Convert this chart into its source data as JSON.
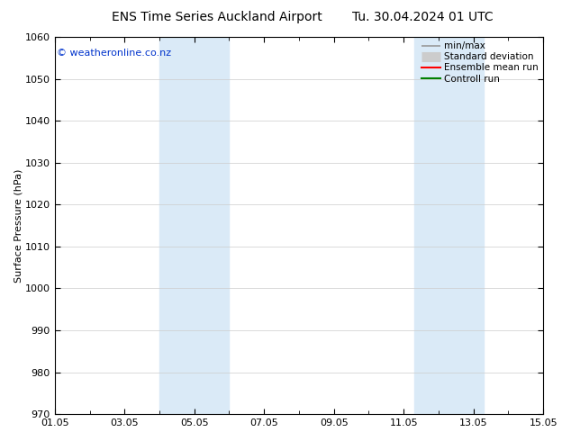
{
  "title_left": "ENS Time Series Auckland Airport",
  "title_right": "Tu. 30.04.2024 01 UTC",
  "ylabel": "Surface Pressure (hPa)",
  "ylim": [
    970,
    1060
  ],
  "yticks": [
    970,
    980,
    990,
    1000,
    1010,
    1020,
    1030,
    1040,
    1050,
    1060
  ],
  "xlim_start": 0,
  "xlim_end": 14,
  "xtick_positions": [
    0,
    2,
    4,
    6,
    8,
    10,
    12,
    14
  ],
  "xtick_labels": [
    "01.05",
    "03.05",
    "05.05",
    "07.05",
    "09.05",
    "11.05",
    "13.05",
    "15.05"
  ],
  "shaded_bands": [
    {
      "xmin": 3.0,
      "xmax": 5.0
    },
    {
      "xmin": 10.3,
      "xmax": 12.3
    }
  ],
  "band_color": "#daeaf7",
  "band_alpha": 1.0,
  "watermark": "© weatheronline.co.nz",
  "watermark_color": "#0033cc",
  "legend_entries": [
    {
      "label": "min/max",
      "color": "#999999",
      "lw": 1.2,
      "style": "-"
    },
    {
      "label": "Standard deviation",
      "color": "#cccccc",
      "lw": 8,
      "style": "-"
    },
    {
      "label": "Ensemble mean run",
      "color": "red",
      "lw": 1.5,
      "style": "-"
    },
    {
      "label": "Controll run",
      "color": "green",
      "lw": 1.5,
      "style": "-"
    }
  ],
  "background_color": "#ffffff",
  "grid_color": "#cccccc",
  "title_fontsize": 10,
  "axis_label_fontsize": 8,
  "tick_fontsize": 8,
  "watermark_fontsize": 8,
  "legend_fontsize": 7.5
}
